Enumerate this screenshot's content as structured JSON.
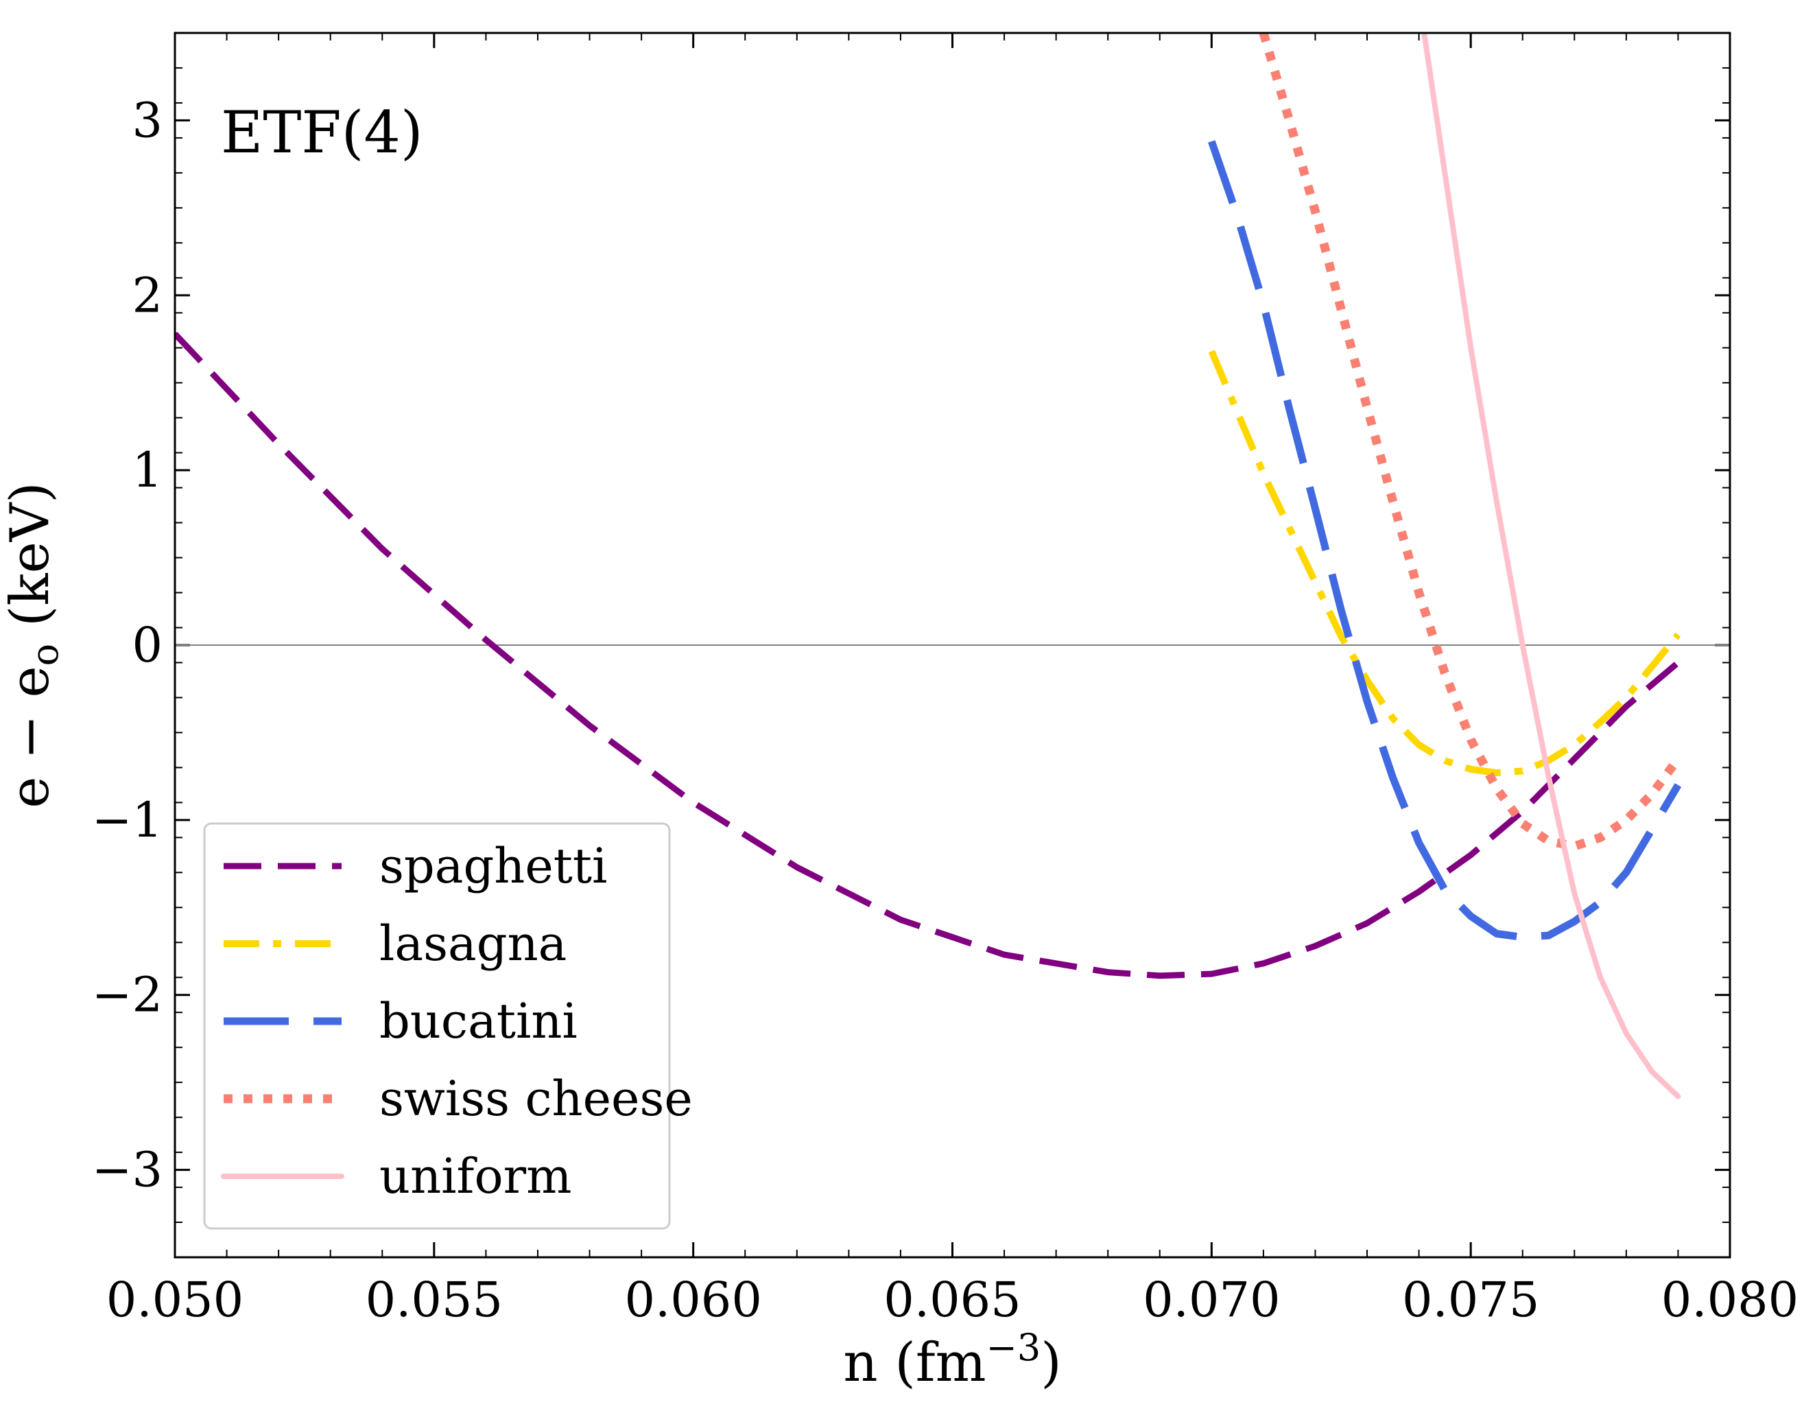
{
  "chart_data": {
    "type": "line",
    "annotation": "ETF(4)",
    "xlabel": "n (fm",
    "xlabel_exponent": "−3",
    "xlabel_close": ")",
    "ylabel": "e − e",
    "ylabel_subscript": "o",
    "ylabel_unit": " (keV)",
    "xlim": [
      0.05,
      0.08
    ],
    "ylim": [
      -3.5,
      3.5
    ],
    "x_ticks": [
      {
        "value": 0.05,
        "label": "0.050"
      },
      {
        "value": 0.055,
        "label": "0.055"
      },
      {
        "value": 0.06,
        "label": "0.060"
      },
      {
        "value": 0.065,
        "label": "0.065"
      },
      {
        "value": 0.07,
        "label": "0.070"
      },
      {
        "value": 0.075,
        "label": "0.075"
      },
      {
        "value": 0.08,
        "label": "0.080"
      }
    ],
    "y_ticks": [
      {
        "value": -3,
        "label": "−3"
      },
      {
        "value": -2,
        "label": "−2"
      },
      {
        "value": -1,
        "label": "−1"
      },
      {
        "value": 0,
        "label": "0"
      },
      {
        "value": 1,
        "label": "1"
      },
      {
        "value": 2,
        "label": "2"
      },
      {
        "value": 3,
        "label": "3"
      }
    ],
    "x_minor_step": 0.001,
    "y_minor_step": 0.2,
    "reference_line_y": 0,
    "legend_position": "lower-left",
    "series": [
      {
        "name": "spaghetti",
        "color": "#800080",
        "dash": "dashed",
        "points": [
          [
            0.05,
            1.78
          ],
          [
            0.052,
            1.15
          ],
          [
            0.054,
            0.55
          ],
          [
            0.056,
            0.03
          ],
          [
            0.058,
            -0.46
          ],
          [
            0.06,
            -0.9
          ],
          [
            0.062,
            -1.27
          ],
          [
            0.064,
            -1.57
          ],
          [
            0.066,
            -1.77
          ],
          [
            0.068,
            -1.87
          ],
          [
            0.069,
            -1.89
          ],
          [
            0.07,
            -1.88
          ],
          [
            0.071,
            -1.82
          ],
          [
            0.072,
            -1.72
          ],
          [
            0.073,
            -1.59
          ],
          [
            0.074,
            -1.41
          ],
          [
            0.075,
            -1.2
          ],
          [
            0.076,
            -0.95
          ],
          [
            0.077,
            -0.65
          ],
          [
            0.078,
            -0.35
          ],
          [
            0.079,
            -0.1
          ]
        ]
      },
      {
        "name": "lasagna",
        "color": "#FFD700",
        "dash": "dashdot",
        "points": [
          [
            0.07,
            1.68
          ],
          [
            0.071,
            0.98
          ],
          [
            0.072,
            0.36
          ],
          [
            0.0725,
            0.05
          ],
          [
            0.073,
            -0.2
          ],
          [
            0.0735,
            -0.42
          ],
          [
            0.074,
            -0.57
          ],
          [
            0.0745,
            -0.66
          ],
          [
            0.075,
            -0.71
          ],
          [
            0.0755,
            -0.73
          ],
          [
            0.076,
            -0.72
          ],
          [
            0.0765,
            -0.66
          ],
          [
            0.077,
            -0.57
          ],
          [
            0.0775,
            -0.44
          ],
          [
            0.078,
            -0.3
          ],
          [
            0.0785,
            -0.12
          ],
          [
            0.079,
            0.06
          ]
        ]
      },
      {
        "name": "bucatini",
        "color": "#4169E1",
        "dash": "longdash",
        "points": [
          [
            0.07,
            2.88
          ],
          [
            0.0705,
            2.45
          ],
          [
            0.071,
            1.95
          ],
          [
            0.0715,
            1.35
          ],
          [
            0.072,
            0.78
          ],
          [
            0.0725,
            0.2
          ],
          [
            0.073,
            -0.32
          ],
          [
            0.0735,
            -0.76
          ],
          [
            0.074,
            -1.13
          ],
          [
            0.0745,
            -1.4
          ],
          [
            0.075,
            -1.55
          ],
          [
            0.0755,
            -1.65
          ],
          [
            0.076,
            -1.67
          ],
          [
            0.0765,
            -1.66
          ],
          [
            0.077,
            -1.58
          ],
          [
            0.0775,
            -1.47
          ],
          [
            0.078,
            -1.3
          ],
          [
            0.0785,
            -1.05
          ],
          [
            0.079,
            -0.8
          ]
        ]
      },
      {
        "name": "swiss cheese",
        "color": "#FA8072",
        "dash": "dotted",
        "points": [
          [
            0.071,
            3.5
          ],
          [
            0.0715,
            3.0
          ],
          [
            0.072,
            2.48
          ],
          [
            0.0725,
            1.92
          ],
          [
            0.073,
            1.36
          ],
          [
            0.0735,
            0.82
          ],
          [
            0.074,
            0.3
          ],
          [
            0.0745,
            -0.16
          ],
          [
            0.075,
            -0.54
          ],
          [
            0.0755,
            -0.82
          ],
          [
            0.076,
            -1.02
          ],
          [
            0.0765,
            -1.12
          ],
          [
            0.077,
            -1.15
          ],
          [
            0.0775,
            -1.1
          ],
          [
            0.078,
            -1.0
          ],
          [
            0.0785,
            -0.85
          ],
          [
            0.079,
            -0.65
          ]
        ]
      },
      {
        "name": "uniform",
        "color": "#FFC0CB",
        "dash": "solid",
        "points": [
          [
            0.0741,
            3.5
          ],
          [
            0.0745,
            2.7
          ],
          [
            0.075,
            1.7
          ],
          [
            0.0755,
            0.82
          ],
          [
            0.076,
            0.0
          ],
          [
            0.0765,
            -0.75
          ],
          [
            0.077,
            -1.42
          ],
          [
            0.0775,
            -1.9
          ],
          [
            0.078,
            -2.22
          ],
          [
            0.0785,
            -2.44
          ],
          [
            0.079,
            -2.58
          ]
        ]
      }
    ]
  }
}
